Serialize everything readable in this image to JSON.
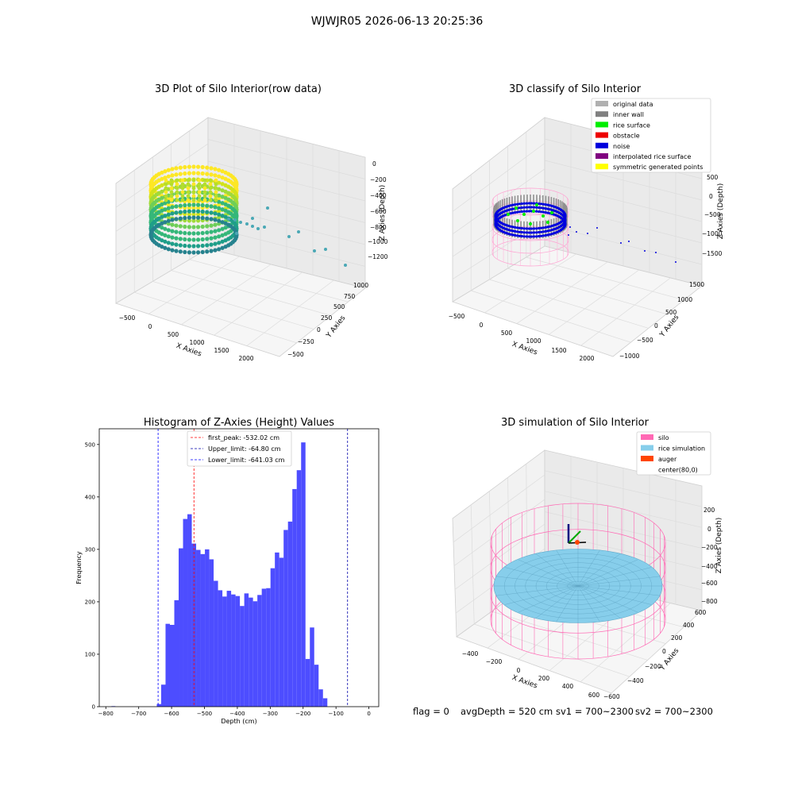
{
  "suptitle": "WJWJR05 2026-06-13 20:25:36",
  "footer": {
    "flag": "flag = 0",
    "avg_depth": "avgDepth = 520 cm",
    "sv1": "sv1 = 700~2300",
    "sv2": "sv2 = 700~2300"
  },
  "chart_data": [
    {
      "type": "scatter",
      "title": "3D Plot of Silo Interior(row data)",
      "xlabel": "X Axies",
      "ylabel": "Y Axies",
      "zlabel": "Z Axies (Depth)",
      "x_ticks": [
        "−500",
        "0",
        "500",
        "1000",
        "1500",
        "2000"
      ],
      "y_ticks": [
        "−500",
        "−250",
        "0",
        "250",
        "500",
        "750",
        "1000"
      ],
      "z_ticks": [
        "0",
        "−200",
        "−400",
        "−600",
        "−800",
        "−1000",
        "−1200"
      ],
      "colors": {
        "low": "#2c7fb8",
        "mid": "#35b779",
        "high": "#fde725"
      }
    },
    {
      "type": "scatter",
      "title": "3D classify of Silo Interior",
      "xlabel": "X Axies",
      "ylabel": "Y Axies",
      "zlabel": "Z Axies (Depth)",
      "x_ticks": [
        "−500",
        "0",
        "500",
        "1000",
        "1500",
        "2000"
      ],
      "y_ticks": [
        "−1000",
        "−500",
        "0",
        "500",
        "1000",
        "1500"
      ],
      "z_ticks": [
        "500",
        "0",
        "−500",
        "−1000",
        "−1500"
      ],
      "legend_position": "top-right",
      "legend": [
        {
          "label": "original data",
          "color": "#b0b0b0"
        },
        {
          "label": "inner wall",
          "color": "#808080"
        },
        {
          "label": "rice surface",
          "color": "#00ee00"
        },
        {
          "label": "obstacle",
          "color": "#ee0000"
        },
        {
          "label": "noise",
          "color": "#0000dd"
        },
        {
          "label": "interpolated rice surface",
          "color": "#800080"
        },
        {
          "label": "symmetric generated points",
          "color": "#ffff00"
        }
      ]
    },
    {
      "type": "bar",
      "title": "Histogram of Z-Axies (Height) Values",
      "xlabel": "Depth (cm)",
      "ylabel": "Frequency",
      "xlim": [
        -820,
        30
      ],
      "ylim": [
        0,
        530
      ],
      "x_ticks": [
        -800,
        -700,
        -600,
        -500,
        -400,
        -300,
        -200,
        -100,
        0
      ],
      "y_ticks": [
        0,
        100,
        200,
        300,
        400,
        500
      ],
      "bin_start": -645,
      "bin_width": 13.3,
      "bar_color": "#4d4dff",
      "outlier_bins": [
        {
          "x": -777,
          "value": 1
        }
      ],
      "values": [
        5,
        42,
        158,
        156,
        203,
        302,
        358,
        367,
        311,
        299,
        291,
        300,
        281,
        240,
        222,
        210,
        221,
        214,
        211,
        192,
        216,
        208,
        201,
        213,
        225,
        226,
        264,
        294,
        284,
        337,
        353,
        415,
        451,
        504,
        91,
        151,
        80,
        33,
        16
      ],
      "lines": [
        {
          "label": "first_peak: -532.02 cm",
          "x": -532.02,
          "color": "#ff0000"
        },
        {
          "label": "Upper_limit: -64.80 cm",
          "x": -64.8,
          "color": "#0000aa"
        },
        {
          "label": "Lower_limit: -641.03 cm",
          "x": -641.03,
          "color": "#0000ff"
        }
      ],
      "legend_position": "top-center"
    },
    {
      "type": "surface",
      "title": "3D simulation of Silo Interior",
      "xlabel": "X Axies",
      "ylabel": "Y Axies",
      "zlabel": "Z Axies (Depth)",
      "x_ticks": [
        "−400",
        "−200",
        "0",
        "200",
        "400",
        "600"
      ],
      "y_ticks": [
        "−600",
        "−400",
        "−200",
        "0",
        "200",
        "400",
        "600"
      ],
      "z_ticks": [
        "200",
        "0",
        "−200",
        "−400",
        "−600",
        "−800"
      ],
      "legend_position": "top-right",
      "legend": [
        {
          "label": "silo",
          "color": "#ff69b4"
        },
        {
          "label": "rice simulation",
          "color": "#87ceeb"
        },
        {
          "label": "auger",
          "color": "#ff4500"
        },
        {
          "label": "center(80,0)",
          "color": ""
        }
      ]
    }
  ]
}
